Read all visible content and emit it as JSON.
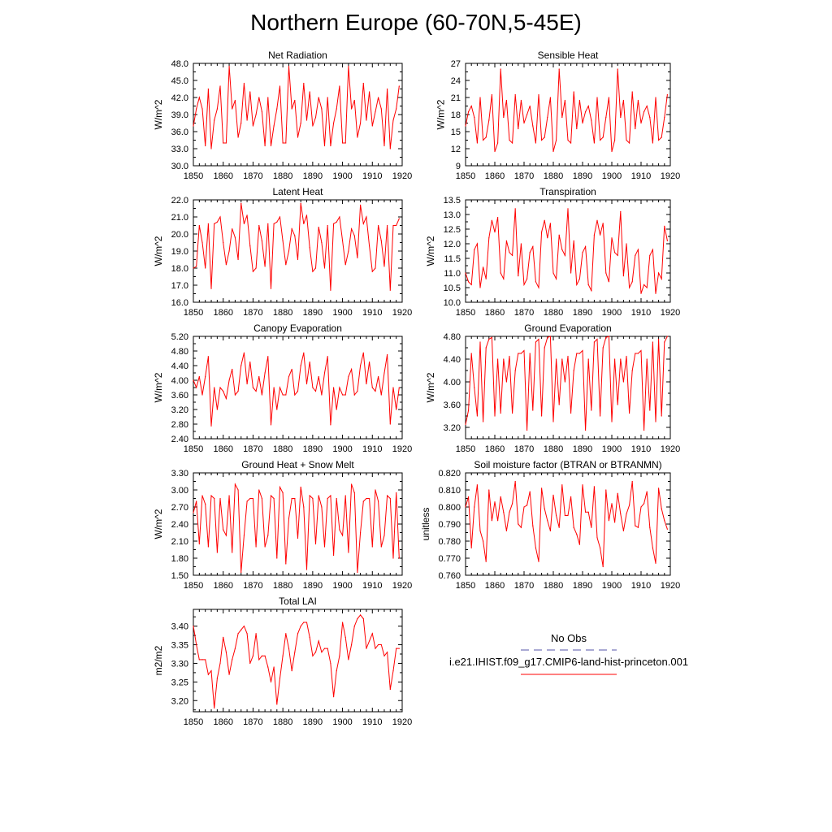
{
  "title": "Northern Europe (60-70N,5-45E)",
  "colors": {
    "model": "#ff0000",
    "obs": "#5555aa",
    "axis": "#000000"
  },
  "legend": {
    "obs_label": "No Obs",
    "model_label": "i.e21.IHIST.f09_g17.CMIP6-land-hist-princeton.001"
  },
  "chart_data": [
    {
      "type": "line",
      "title": "Net Radiation",
      "ylabel": "W/m^2",
      "xlim": [
        1850,
        1920
      ],
      "ylim": [
        30.0,
        48.0
      ],
      "xticks": [
        "1850",
        "1860",
        "1870",
        "1880",
        "1890",
        "1900",
        "1910",
        "1920"
      ],
      "yticks": [
        "30.0",
        "33.0",
        "36.0",
        "39.0",
        "42.0",
        "45.0",
        "48.0"
      ],
      "series": [
        {
          "x_start": 1850,
          "values": [
            37.0,
            40.0,
            42.0,
            40.0,
            33.5,
            43.5,
            33.0,
            38.0,
            40.0,
            44.0,
            34.0,
            34.0,
            47.5,
            40.0,
            41.5,
            35.0,
            37.5,
            44.5,
            38.0,
            43.0,
            37.0,
            39.0,
            42.0,
            39.5,
            33.5,
            42.0,
            33.5,
            37.0,
            40.0,
            44.0,
            34.0,
            34.0,
            47.5,
            40.0,
            41.5,
            35.0,
            37.5,
            44.5,
            38.0,
            43.0,
            37.0,
            38.5,
            42.0,
            40.0,
            33.5,
            42.0,
            33.5,
            37.5,
            40.0,
            44.0,
            34.0,
            34.0,
            47.5,
            40.0,
            41.5,
            35.0,
            37.5,
            44.5,
            38.0,
            43.0,
            37.0,
            39.5,
            42.0,
            40.0,
            33.5,
            43.5,
            33.0,
            38.0,
            40.0,
            44.0
          ]
        }
      ]
    },
    {
      "type": "line",
      "title": "Sensible Heat",
      "ylabel": "W/m^2",
      "xlim": [
        1850,
        1920
      ],
      "ylim": [
        9,
        27
      ],
      "xticks": [
        "1850",
        "1860",
        "1870",
        "1880",
        "1890",
        "1900",
        "1910",
        "1920"
      ],
      "yticks": [
        "9",
        "12",
        "15",
        "18",
        "21",
        "24",
        "27"
      ],
      "series": [
        {
          "x_start": 1850,
          "values": [
            16.0,
            18.5,
            19.5,
            17.5,
            13.0,
            21.0,
            13.5,
            14.0,
            17.0,
            21.5,
            11.5,
            13.0,
            26.0,
            17.5,
            20.5,
            13.5,
            13.0,
            21.5,
            15.5,
            20.5,
            16.5,
            18.0,
            19.5,
            16.0,
            13.0,
            21.5,
            13.5,
            14.0,
            17.5,
            21.0,
            11.5,
            13.5,
            26.0,
            17.5,
            20.5,
            13.5,
            13.0,
            22.0,
            15.5,
            20.5,
            16.5,
            18.5,
            19.5,
            17.0,
            13.0,
            21.0,
            13.5,
            14.0,
            17.5,
            21.0,
            11.5,
            13.5,
            26.0,
            17.5,
            20.5,
            13.5,
            13.0,
            22.0,
            15.5,
            20.5,
            16.5,
            18.5,
            19.5,
            17.5,
            13.0,
            21.0,
            13.5,
            14.0,
            17.5,
            21.5
          ]
        }
      ]
    },
    {
      "type": "line",
      "title": "Latent Heat",
      "ylabel": "W/m^2",
      "xlim": [
        1850,
        1920
      ],
      "ylim": [
        16.0,
        22.0
      ],
      "xticks": [
        "1850",
        "1860",
        "1870",
        "1880",
        "1890",
        "1900",
        "1910",
        "1920"
      ],
      "yticks": [
        "16.0",
        "17.0",
        "18.0",
        "19.0",
        "20.0",
        "21.0",
        "22.0"
      ],
      "series": [
        {
          "x_start": 1850,
          "values": [
            18.0,
            18.1,
            20.5,
            19.5,
            18.0,
            20.6,
            16.8,
            20.6,
            20.7,
            21.0,
            19.5,
            18.2,
            19.0,
            20.3,
            19.8,
            18.5,
            21.8,
            20.6,
            21.1,
            19.3,
            17.8,
            18.0,
            20.5,
            19.6,
            18.1,
            20.6,
            16.8,
            20.6,
            20.7,
            21.0,
            19.6,
            18.2,
            19.0,
            20.3,
            19.9,
            18.5,
            21.8,
            20.6,
            21.1,
            19.2,
            17.8,
            18.0,
            20.4,
            19.5,
            18.0,
            20.5,
            16.7,
            20.6,
            20.7,
            21.0,
            19.6,
            18.2,
            19.0,
            20.3,
            19.9,
            18.6,
            21.7,
            20.6,
            21.0,
            19.3,
            17.8,
            18.0,
            20.5,
            19.6,
            18.1,
            20.5,
            16.7,
            20.5,
            20.5,
            20.9
          ]
        }
      ]
    },
    {
      "type": "line",
      "title": "Transpiration",
      "ylabel": "W/m^2",
      "xlim": [
        1850,
        1920
      ],
      "ylim": [
        10.0,
        13.5
      ],
      "xticks": [
        "1850",
        "1860",
        "1870",
        "1880",
        "1890",
        "1900",
        "1910",
        "1920"
      ],
      "yticks": [
        "10.0",
        "10.5",
        "11.0",
        "11.5",
        "12.0",
        "12.5",
        "13.0",
        "13.5"
      ],
      "series": [
        {
          "x_start": 1850,
          "values": [
            11.0,
            10.7,
            10.6,
            11.8,
            12.0,
            10.5,
            11.2,
            10.8,
            12.2,
            12.8,
            12.4,
            12.9,
            11.0,
            10.8,
            12.1,
            11.7,
            11.6,
            13.2,
            10.9,
            12.0,
            10.6,
            10.8,
            11.7,
            11.9,
            10.7,
            10.5,
            12.4,
            12.8,
            12.2,
            12.7,
            11.0,
            10.8,
            12.3,
            11.8,
            11.6,
            13.2,
            11.0,
            12.1,
            10.6,
            10.8,
            11.7,
            11.9,
            10.6,
            10.4,
            12.3,
            12.8,
            12.3,
            12.7,
            11.0,
            10.7,
            12.2,
            11.7,
            11.6,
            13.1,
            10.9,
            12.0,
            10.5,
            10.7,
            11.6,
            11.8,
            10.3,
            10.6,
            10.5,
            11.6,
            11.8,
            10.3,
            11.0,
            10.8,
            12.6,
            12.1
          ]
        }
      ]
    },
    {
      "type": "line",
      "title": "Canopy Evaporation",
      "ylabel": "W/m^2",
      "xlim": [
        1850,
        1920
      ],
      "ylim": [
        2.4,
        5.2
      ],
      "xticks": [
        "1850",
        "1860",
        "1870",
        "1880",
        "1890",
        "1900",
        "1910",
        "1920"
      ],
      "yticks": [
        "2.40",
        "2.80",
        "3.20",
        "3.60",
        "4.00",
        "4.40",
        "4.80",
        "5.20"
      ],
      "series": [
        {
          "x_start": 1850,
          "values": [
            4.0,
            3.8,
            4.1,
            3.6,
            4.1,
            4.65,
            2.75,
            3.8,
            3.2,
            3.8,
            3.7,
            3.5,
            4.0,
            4.3,
            3.6,
            3.7,
            4.4,
            4.75,
            3.9,
            4.5,
            3.8,
            3.7,
            4.1,
            3.6,
            4.2,
            4.65,
            2.78,
            3.8,
            3.2,
            3.8,
            3.6,
            3.6,
            4.1,
            4.3,
            3.6,
            3.7,
            4.4,
            4.75,
            3.9,
            4.5,
            3.8,
            3.7,
            4.1,
            3.6,
            4.2,
            4.65,
            2.78,
            3.8,
            3.2,
            3.8,
            3.6,
            3.6,
            4.1,
            4.3,
            3.6,
            3.7,
            4.4,
            4.75,
            3.9,
            4.5,
            3.8,
            3.7,
            4.1,
            3.6,
            4.2,
            4.7,
            2.8,
            3.8,
            3.2,
            3.8
          ]
        }
      ]
    },
    {
      "type": "line",
      "title": "Ground Evaporation",
      "ylabel": "W/m^2",
      "xlim": [
        1850,
        1920
      ],
      "ylim": [
        3.0,
        4.8
      ],
      "xticks": [
        "1850",
        "1860",
        "1870",
        "1880",
        "1890",
        "1900",
        "1910",
        "1920"
      ],
      "yticks": [
        "3.20",
        "3.60",
        "4.00",
        "4.40",
        "4.80"
      ],
      "series": [
        {
          "x_start": 1850,
          "values": [
            3.25,
            3.5,
            4.5,
            3.9,
            3.4,
            4.7,
            3.3,
            4.6,
            4.75,
            4.78,
            3.4,
            4.4,
            3.45,
            4.4,
            4.0,
            4.45,
            3.45,
            4.2,
            4.5,
            4.5,
            4.55,
            3.15,
            4.5,
            3.5,
            4.7,
            4.75,
            3.4,
            4.6,
            4.78,
            4.8,
            3.3,
            4.4,
            3.6,
            4.4,
            4.0,
            4.45,
            3.45,
            4.2,
            4.5,
            4.5,
            4.55,
            3.15,
            4.4,
            3.5,
            4.7,
            4.75,
            3.4,
            4.6,
            4.78,
            4.8,
            3.3,
            4.4,
            3.6,
            4.4,
            4.0,
            4.45,
            3.45,
            4.2,
            4.5,
            4.5,
            4.55,
            3.15,
            4.4,
            3.5,
            4.7,
            3.3,
            4.75,
            3.4,
            4.7,
            4.8
          ]
        }
      ]
    },
    {
      "type": "line",
      "title": "Ground Heat + Snow Melt",
      "ylabel": "W/m^2",
      "xlim": [
        1850,
        1920
      ],
      "ylim": [
        1.5,
        3.3
      ],
      "xticks": [
        "1850",
        "1860",
        "1870",
        "1880",
        "1890",
        "1900",
        "1910",
        "1920"
      ],
      "yticks": [
        "1.50",
        "1.80",
        "2.10",
        "2.40",
        "2.70",
        "3.00",
        "3.30"
      ],
      "series": [
        {
          "x_start": 1850,
          "values": [
            2.6,
            2.8,
            2.05,
            2.9,
            2.75,
            2.0,
            2.9,
            2.85,
            1.9,
            2.85,
            2.3,
            2.2,
            2.9,
            1.9,
            3.1,
            3.0,
            1.55,
            2.2,
            2.8,
            2.85,
            2.85,
            2.0,
            3.0,
            2.85,
            2.0,
            2.2,
            2.9,
            2.85,
            1.8,
            3.05,
            2.95,
            1.7,
            2.5,
            2.85,
            2.85,
            2.15,
            3.05,
            2.7,
            1.6,
            2.9,
            2.85,
            2.05,
            2.9,
            2.7,
            2.0,
            2.85,
            2.9,
            1.85,
            2.85,
            2.3,
            2.2,
            2.9,
            1.9,
            3.1,
            2.95,
            1.55,
            2.25,
            2.8,
            2.85,
            2.85,
            2.0,
            3.0,
            2.8,
            2.0,
            2.2,
            2.9,
            2.85,
            1.8,
            2.95,
            1.8
          ]
        }
      ]
    },
    {
      "type": "line",
      "title": "Soil moisture factor (BTRAN or BTRANMN)",
      "ylabel": "unitless",
      "xlim": [
        1850,
        1920
      ],
      "ylim": [
        0.76,
        0.82
      ],
      "xticks": [
        "1850",
        "1860",
        "1870",
        "1880",
        "1890",
        "1900",
        "1910",
        "1920"
      ],
      "yticks": [
        "0.760",
        "0.770",
        "0.780",
        "0.790",
        "0.800",
        "0.810",
        "0.820"
      ],
      "series": [
        {
          "x_start": 1850,
          "values": [
            0.8,
            0.806,
            0.776,
            0.8,
            0.813,
            0.786,
            0.78,
            0.768,
            0.81,
            0.792,
            0.803,
            0.792,
            0.806,
            0.797,
            0.786,
            0.797,
            0.802,
            0.815,
            0.79,
            0.788,
            0.8,
            0.801,
            0.809,
            0.789,
            0.776,
            0.768,
            0.811,
            0.799,
            0.792,
            0.786,
            0.807,
            0.795,
            0.788,
            0.813,
            0.795,
            0.795,
            0.806,
            0.788,
            0.784,
            0.778,
            0.813,
            0.797,
            0.797,
            0.788,
            0.812,
            0.782,
            0.776,
            0.765,
            0.81,
            0.792,
            0.802,
            0.791,
            0.808,
            0.796,
            0.786,
            0.796,
            0.801,
            0.815,
            0.789,
            0.788,
            0.8,
            0.802,
            0.809,
            0.788,
            0.776,
            0.767,
            0.811,
            0.799,
            0.792,
            0.787
          ]
        }
      ]
    },
    {
      "type": "line",
      "title": "Total LAI",
      "ylabel": "m2/m2",
      "xlim": [
        1850,
        1920
      ],
      "ylim": [
        3.17,
        3.445
      ],
      "xticks": [
        "1850",
        "1860",
        "1870",
        "1880",
        "1890",
        "1900",
        "1910",
        "1920"
      ],
      "yticks": [
        "3.20",
        "3.25",
        "3.30",
        "3.35",
        "3.40"
      ],
      "series": [
        {
          "x_start": 1850,
          "values": [
            3.4,
            3.35,
            3.31,
            3.31,
            3.31,
            3.27,
            3.28,
            3.18,
            3.26,
            3.3,
            3.37,
            3.33,
            3.27,
            3.31,
            3.34,
            3.38,
            3.39,
            3.4,
            3.38,
            3.3,
            3.32,
            3.38,
            3.31,
            3.32,
            3.32,
            3.29,
            3.25,
            3.29,
            3.19,
            3.26,
            3.32,
            3.38,
            3.34,
            3.28,
            3.33,
            3.38,
            3.4,
            3.41,
            3.41,
            3.37,
            3.32,
            3.33,
            3.36,
            3.33,
            3.34,
            3.34,
            3.3,
            3.21,
            3.28,
            3.32,
            3.41,
            3.37,
            3.31,
            3.35,
            3.4,
            3.42,
            3.43,
            3.42,
            3.34,
            3.36,
            3.38,
            3.34,
            3.35,
            3.35,
            3.32,
            3.33,
            3.23,
            3.28,
            3.34,
            3.34
          ]
        }
      ]
    }
  ]
}
